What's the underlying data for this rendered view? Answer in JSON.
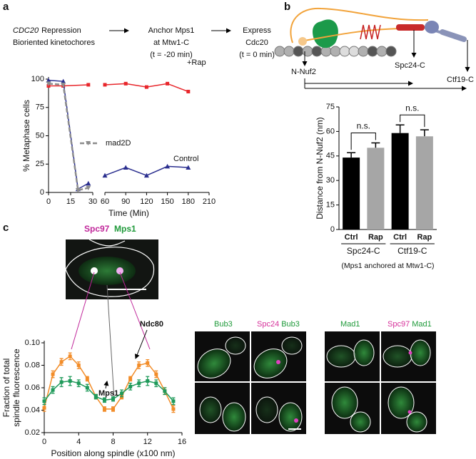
{
  "panel_labels": {
    "a": "a",
    "b": "b",
    "c": "c"
  },
  "flow": {
    "step1": {
      "gene": "CDC20",
      "text": "Repression",
      "line2": "Bioriented kinetochores"
    },
    "step2": [
      "Anchor Mps1",
      "at Mtw1-C",
      "(t = -20 min)"
    ],
    "step3": [
      "Express",
      "Cdc20",
      "(t = 0 min)"
    ]
  },
  "diagram": {
    "labels": [
      "N-Nuf2",
      "Spc24-C",
      "Ctf19-C"
    ]
  },
  "micrographs": {
    "inset": [
      "Spc97",
      "Mps1"
    ],
    "bub3_panel": {
      "single": "Bub3",
      "merge": [
        "Spc24",
        "Bub3"
      ]
    },
    "mad1_panel": {
      "single": "Mad1",
      "merge": [
        "Spc97",
        "Mad1"
      ]
    }
  },
  "chart_data": [
    {
      "type": "line",
      "x_label": "Time (Min)",
      "y_label": "% Metaphase cells",
      "xlim": [
        0,
        210
      ],
      "x_break": [
        30,
        60
      ],
      "xticks": [
        0,
        15,
        30,
        60,
        90,
        120,
        150,
        180,
        210
      ],
      "ylim": [
        0,
        100
      ],
      "yticks": [
        0,
        25,
        50,
        75,
        100
      ],
      "series": [
        {
          "name": "+Rap",
          "color": "#e8262b",
          "marker": "square",
          "x": [
            0,
            10,
            27,
            60,
            90,
            120,
            150,
            180
          ],
          "values": [
            94,
            94,
            95,
            95,
            96,
            93,
            96,
            89
          ]
        },
        {
          "name": "Control",
          "color": "#2b2f8f",
          "marker": "triangle",
          "x": [
            0,
            10,
            20,
            27,
            60,
            90,
            120,
            150,
            180
          ],
          "values": [
            99,
            98,
            3,
            8,
            15,
            22,
            15,
            23,
            22
          ]
        },
        {
          "name": "mad2D",
          "color": "#8c8c8c",
          "dashed": true,
          "marker": "triangle-down",
          "x": [
            0,
            10,
            20,
            27
          ],
          "values": [
            96,
            95,
            2,
            4
          ]
        }
      ]
    },
    {
      "type": "bar",
      "y_label": "Distance from N-Nuf2 (nm)",
      "categories": [
        "Ctrl",
        "Rap",
        "Ctrl",
        "Rap"
      ],
      "groups": [
        "Spc24-C",
        "Ctf19-C"
      ],
      "values": [
        44,
        50,
        59,
        57
      ],
      "errors": [
        3,
        3,
        5,
        4
      ],
      "colors": [
        "#000000",
        "#a6a6a6",
        "#000000",
        "#a6a6a6"
      ],
      "ylim": [
        0,
        75
      ],
      "yticks": [
        0,
        15,
        30,
        45,
        60,
        75
      ],
      "annotations": [
        "n.s.",
        "n.s."
      ],
      "caption": "(Mps1 anchored at Mtw1-C)"
    },
    {
      "type": "line",
      "x_label": "Position along spindle (x100 nm)",
      "y_label": [
        "Fraction of total",
        "spindle fluorescence"
      ],
      "x": [
        0,
        1,
        2,
        3,
        4,
        5,
        6,
        7,
        8,
        9,
        10,
        11,
        12,
        13,
        14,
        15
      ],
      "xlim": [
        0,
        16
      ],
      "xticks": [
        0,
        4,
        8,
        12,
        16
      ],
      "ylim": [
        0.02,
        0.1
      ],
      "yticks": [
        {
          "value": 0.02,
          "label": "0.02"
        },
        {
          "value": 0.04,
          "label": "0.04"
        },
        {
          "value": 0.06,
          "label": "0.06"
        },
        {
          "value": 0.08,
          "label": "0.08"
        },
        {
          "value": 0.1,
          "label": "0.10"
        }
      ],
      "series": [
        {
          "name": "Ndc80",
          "color": "#f28c28",
          "marker": "square",
          "values": [
            0.042,
            0.072,
            0.083,
            0.088,
            0.08,
            0.068,
            0.052,
            0.041,
            0.041,
            0.052,
            0.068,
            0.08,
            0.082,
            0.072,
            0.057,
            0.041
          ],
          "errors": [
            0.003,
            0.003,
            0.003,
            0.003,
            0.003,
            0.002,
            0.002,
            0.002,
            0.002,
            0.002,
            0.002,
            0.003,
            0.003,
            0.003,
            0.003,
            0.003
          ]
        },
        {
          "name": "Mps1",
          "color": "#1f9a5a",
          "marker": "square",
          "values": [
            0.048,
            0.058,
            0.065,
            0.066,
            0.064,
            0.06,
            0.052,
            0.049,
            0.05,
            0.055,
            0.061,
            0.064,
            0.066,
            0.064,
            0.057,
            0.048
          ],
          "errors": [
            0.003,
            0.003,
            0.004,
            0.004,
            0.003,
            0.003,
            0.002,
            0.002,
            0.002,
            0.003,
            0.003,
            0.003,
            0.004,
            0.003,
            0.003,
            0.003
          ]
        }
      ]
    }
  ]
}
